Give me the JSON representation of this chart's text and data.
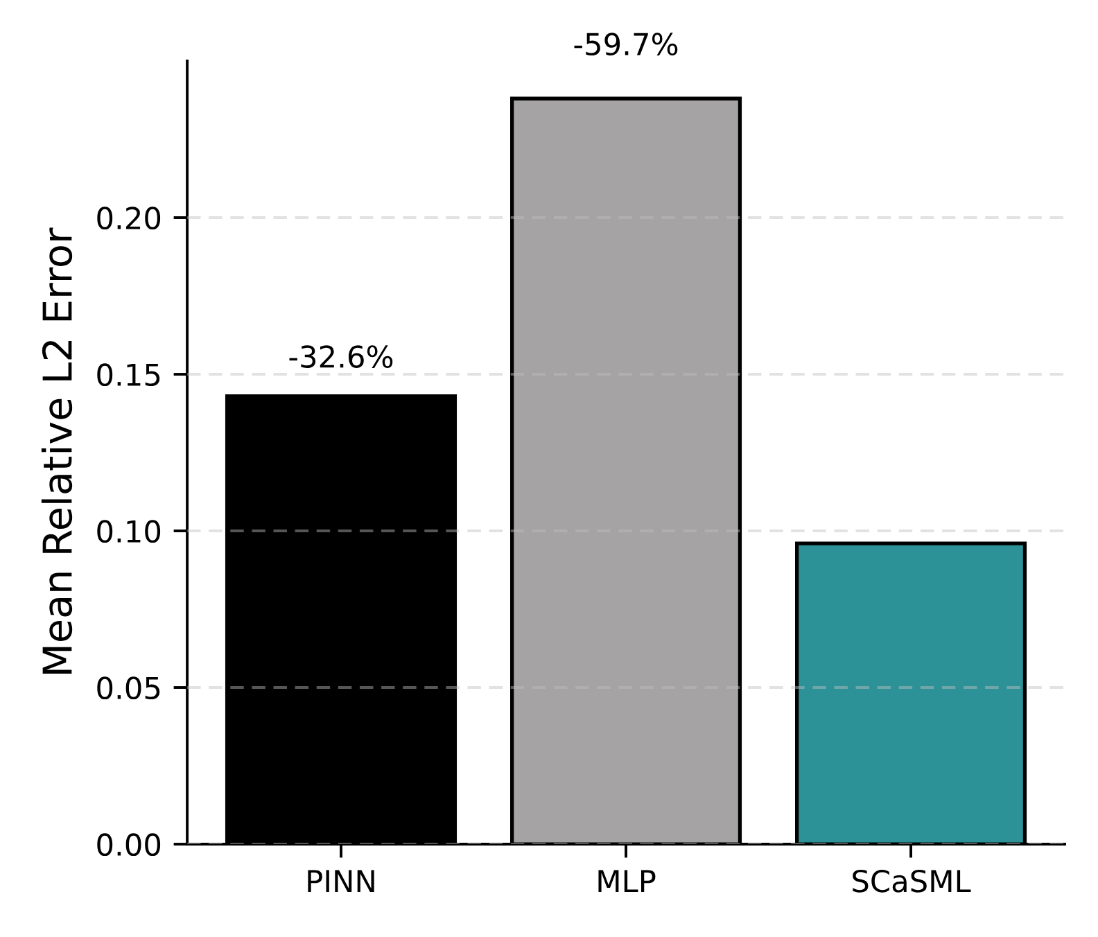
{
  "chart_data": {
    "type": "bar",
    "ylabel": "Mean Relative L2 Error",
    "categories": [
      "PINN",
      "MLP",
      "SCaSML"
    ],
    "values": [
      0.143,
      0.238,
      0.096
    ],
    "colors": [
      "#000000",
      "#a5a3a4",
      "#2d9297"
    ],
    "ylim": [
      0,
      0.25
    ],
    "yticks": [
      {
        "value": 0,
        "label": "0.00"
      },
      {
        "value": 0.05,
        "label": "0.05"
      },
      {
        "value": 0.1,
        "label": "0.10"
      },
      {
        "value": 0.15,
        "label": "0.15"
      },
      {
        "value": 0.2,
        "label": "0.20"
      }
    ],
    "grid": "y",
    "annotations": [
      {
        "text": "-32.6%",
        "x": "PINN",
        "y": 0.143
      },
      {
        "text": "-59.7%",
        "x": "MLP",
        "y": 0.238
      }
    ]
  }
}
